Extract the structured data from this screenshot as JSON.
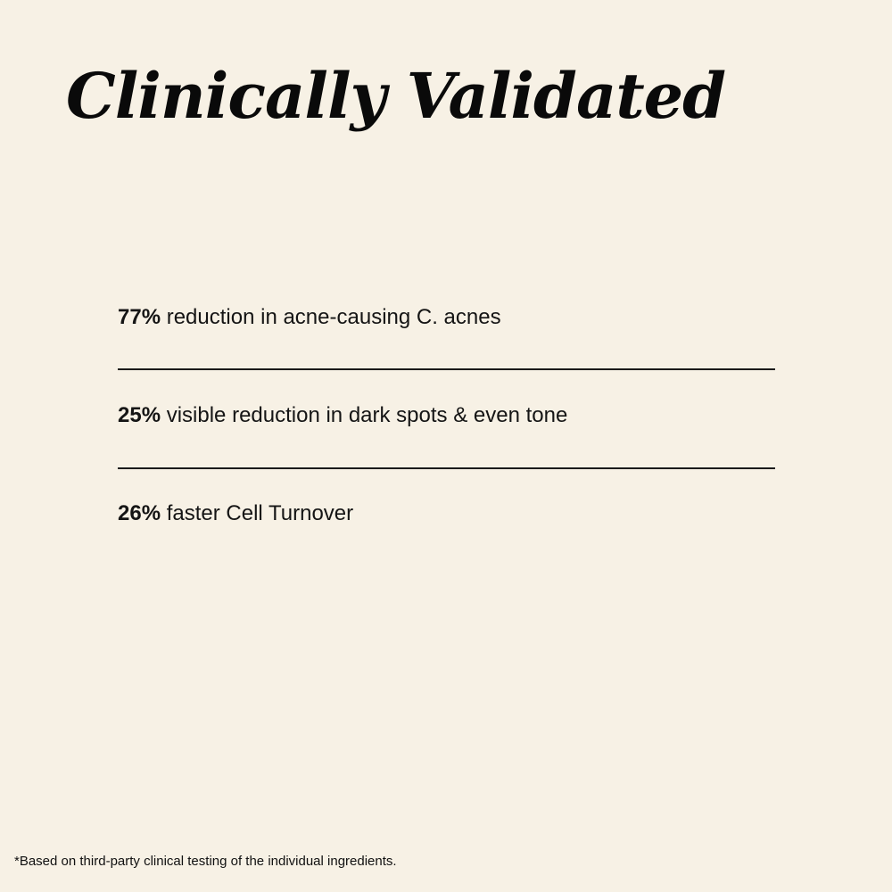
{
  "title": "Clinically Validated",
  "stats": [
    {
      "value": "77%",
      "text": " reduction in acne-causing C. acnes"
    },
    {
      "value": "25%",
      "text": " visible reduction in dark spots & even tone"
    },
    {
      "value": "26%",
      "text": " faster Cell Turnover"
    }
  ],
  "footnote": "*Based on third-party clinical testing of the individual ingredients."
}
